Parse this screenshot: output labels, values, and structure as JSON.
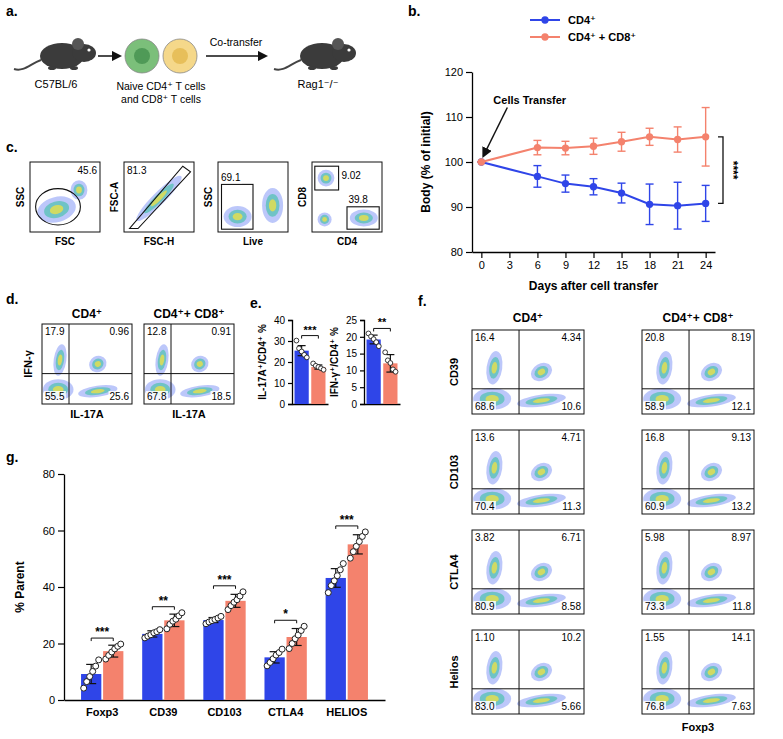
{
  "schematic": {
    "panel": "a.",
    "donor": "C57BL/6",
    "cells": [
      "Naive CD4⁺ T cells",
      "and CD8⁺ T cells"
    ],
    "arrow_label": "Co-transfer",
    "recipient": "Rag1⁻/⁻"
  },
  "chart_data": [
    {
      "panel": "b.",
      "type": "line",
      "x_label": "Days after cell transfer",
      "y_label": "Body (% of initial)",
      "x": [
        0,
        6,
        9,
        12,
        15,
        18,
        21,
        24
      ],
      "series": [
        {
          "name": "CD4⁺",
          "color": "#2f45e8",
          "marker": "circle",
          "values": [
            100,
            96.8,
            95.2,
            94.5,
            93.1,
            90.6,
            90.3,
            90.8
          ],
          "errors": [
            0,
            2.4,
            1.9,
            1.8,
            2.2,
            4.5,
            5.2,
            4.0
          ]
        },
        {
          "name": "CD4⁺ + CD8⁺",
          "color": "#f4826d",
          "marker": "circle",
          "values": [
            100,
            103.2,
            103.1,
            103.5,
            104.5,
            105.6,
            105.0,
            105.6
          ],
          "errors": [
            0,
            1.6,
            1.5,
            1.8,
            2.1,
            1.9,
            2.8,
            6.5
          ]
        }
      ],
      "xlim": [
        -1,
        25
      ],
      "xticks": [
        0,
        3,
        6,
        9,
        12,
        15,
        18,
        21,
        24
      ],
      "ylim": [
        80,
        120
      ],
      "yticks": [
        80,
        90,
        100,
        110,
        120
      ],
      "legend": "top",
      "annotations": [
        "Cells Transfer"
      ],
      "significance": "****"
    },
    {
      "panel": "c.",
      "type": "gating",
      "tick_labels": false,
      "plots": [
        {
          "x_label": "FSC",
          "y_label": "SSC",
          "values": [
            45.6
          ]
        },
        {
          "x_label": "FSC-H",
          "y_label": "FSC-A",
          "values": [
            81.3
          ]
        },
        {
          "x_label": "Live",
          "y_label": "SSC",
          "values": [
            69.1
          ]
        },
        {
          "x_label": "CD4",
          "y_label": "CD8",
          "values": [
            9.02,
            39.8
          ]
        }
      ]
    },
    {
      "panel": "d.",
      "type": "quadrant",
      "tick_labels": false,
      "column_titles": [
        "CD4⁺",
        "CD4⁺+ CD8⁺"
      ],
      "x_label": "IL-17A",
      "rows": [
        {
          "y_label": "IFN-γ",
          "values": [
            [
              17.9,
              0.96,
              55.5,
              25.6
            ],
            [
              12.8,
              0.91,
              67.8,
              18.5
            ]
          ]
        }
      ]
    },
    {
      "panel": "e.",
      "type": "bar",
      "y_label": "IL-17A⁺/CD4⁺ %",
      "categories": [
        null,
        null
      ],
      "values": [
        25.4,
        17.6
      ],
      "errors": [
        2.4,
        1.0
      ],
      "points": [
        [
          30.2,
          26.5,
          25.0,
          23.4,
          22.2
        ],
        [
          19.3,
          18.2,
          17.6,
          17.0,
          16.3
        ]
      ],
      "colors": [
        "#2f45e8",
        "#f4826d"
      ],
      "ylim": [
        0,
        40
      ],
      "yticks": [
        0,
        10,
        20,
        30,
        40
      ],
      "significance": "***"
    },
    {
      "type": "bar",
      "y_label": "IFN-γ⁺/CD4⁺ %",
      "categories": [
        null,
        null
      ],
      "values": [
        19.2,
        12.1
      ],
      "errors": [
        1.3,
        2.6
      ],
      "points": [
        [
          21.0,
          20.1,
          19.3,
          18.4,
          17.2
        ],
        [
          15.4,
          13.0,
          12.2,
          10.3,
          9.6
        ]
      ],
      "colors": [
        "#2f45e8",
        "#f4826d"
      ],
      "ylim": [
        0,
        25
      ],
      "yticks": [
        0,
        5,
        10,
        15,
        20,
        25
      ],
      "significance": "**"
    },
    {
      "panel": "f.",
      "type": "quadrant",
      "tick_labels": false,
      "column_titles": [
        "CD4⁺",
        "CD4⁺+ CD8⁺"
      ],
      "x_label": "Foxp3",
      "rows": [
        {
          "y_label": "CD39",
          "values": [
            [
              16.4,
              4.34,
              68.6,
              10.6
            ],
            [
              20.8,
              8.19,
              58.9,
              12.1
            ]
          ]
        },
        {
          "y_label": "CD103",
          "values": [
            [
              13.6,
              4.71,
              70.4,
              11.3
            ],
            [
              16.8,
              9.13,
              60.9,
              13.2
            ]
          ]
        },
        {
          "y_label": "CTLA4",
          "values": [
            [
              3.82,
              6.71,
              80.9,
              8.58
            ],
            [
              5.98,
              8.97,
              73.3,
              11.8
            ]
          ]
        },
        {
          "y_label": "Helios",
          "values": [
            [
              1.1,
              10.2,
              83.0,
              5.66
            ],
            [
              1.55,
              14.1,
              76.8,
              7.63
            ]
          ],
          "value_labels": [
            [
              "1.10",
              "10.2",
              "83.0",
              "5.66"
            ],
            [
              "1.55",
              "14.1",
              "76.8",
              "7.63"
            ]
          ]
        }
      ]
    },
    {
      "panel": "g.",
      "type": "bar",
      "y_label": "% Parent",
      "categories": [
        "Foxp3",
        "CD39",
        "CD103",
        "CTLA4",
        "HELIOS"
      ],
      "series": [
        {
          "color": "#2f45e8",
          "values": [
            9.2,
            23.4,
            28.3,
            15.1,
            43.2
          ],
          "errors": [
            3.4,
            1.1,
            0.9,
            2.0,
            3.3
          ],
          "points": [
            [
              4.2,
              6.5,
              8.3,
              10.1,
              12.0,
              14.2
            ],
            [
              22.0,
              22.6,
              23.1,
              23.8,
              24.2,
              24.9
            ],
            [
              27.0,
              27.6,
              28.1,
              28.5,
              29.0,
              29.6
            ],
            [
              12.1,
              13.3,
              14.6,
              15.9,
              16.8,
              18.0
            ],
            [
              38.0,
              40.5,
              42.2,
              44.0,
              46.1,
              48.3
            ]
          ]
        },
        {
          "color": "#f4826d",
          "values": [
            17.3,
            28.2,
            35.1,
            22.3,
            55.1
          ],
          "errors": [
            2.1,
            2.2,
            2.3,
            3.0,
            3.4
          ],
          "points": [
            [
              14.5,
              15.8,
              17.0,
              18.1,
              19.0,
              19.8
            ],
            [
              25.2,
              26.8,
              27.9,
              28.6,
              29.8,
              30.9
            ],
            [
              32.0,
              33.4,
              34.6,
              35.5,
              36.8,
              38.3
            ],
            [
              18.2,
              20.0,
              21.7,
              23.0,
              24.6,
              26.1
            ],
            [
              50.2,
              52.5,
              54.4,
              56.1,
              57.9,
              59.5
            ]
          ]
        }
      ],
      "ylim": [
        0,
        80
      ],
      "yticks": [
        0,
        20,
        40,
        60,
        80
      ],
      "significance": [
        "***",
        "**",
        "***",
        "*",
        "***"
      ]
    }
  ]
}
